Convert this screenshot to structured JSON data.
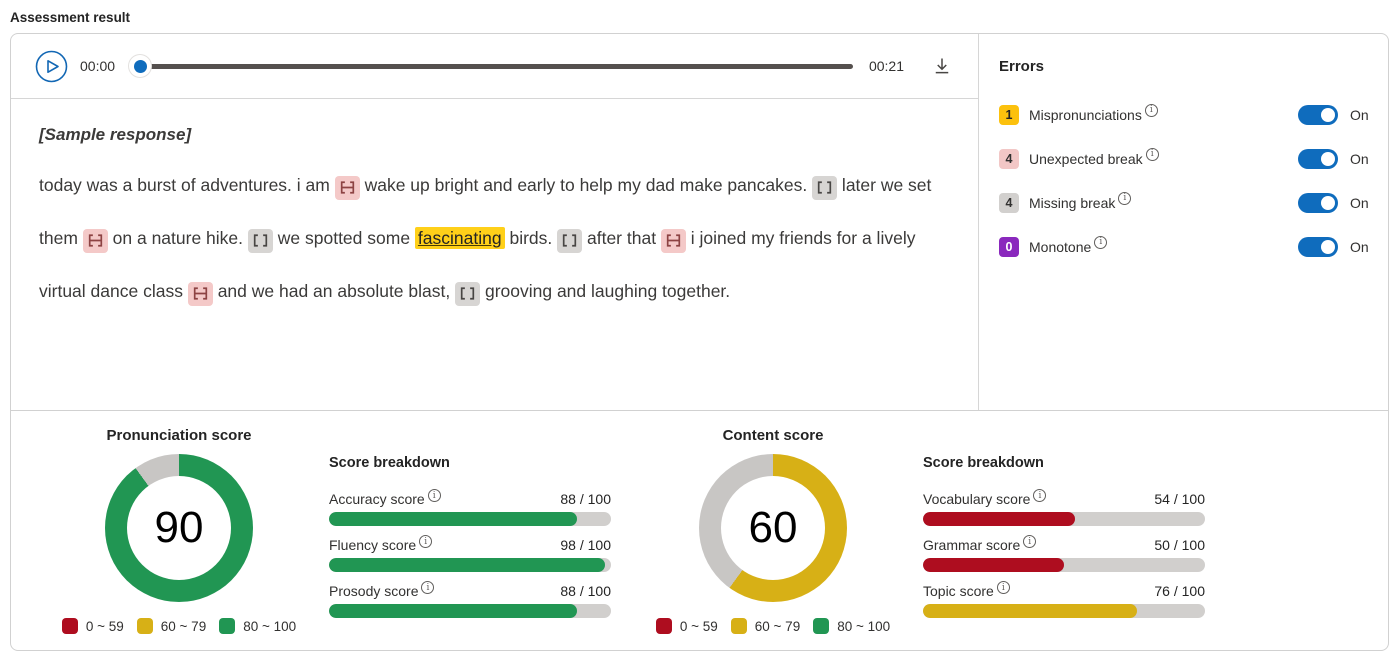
{
  "page_title": "Assessment result",
  "player": {
    "current_time": "00:00",
    "total_time": "00:21"
  },
  "errors_panel": {
    "title": "Errors",
    "items": [
      {
        "count": "1",
        "label": "Mispronunciations",
        "badge_bg": "#fcc10d",
        "badge_fg": "#242424",
        "state": "On"
      },
      {
        "count": "4",
        "label": "Unexpected break",
        "badge_bg": "#f2c7c6",
        "badge_fg": "#323130",
        "state": "On"
      },
      {
        "count": "4",
        "label": "Missing break",
        "badge_bg": "#d2d0ce",
        "badge_fg": "#323130",
        "state": "On"
      },
      {
        "count": "0",
        "label": "Monotone",
        "badge_bg": "#8a28bd",
        "badge_fg": "#ffffff",
        "state": "On"
      }
    ]
  },
  "transcript": {
    "header": "[Sample response]",
    "segments": [
      {
        "type": "text",
        "text": "today was a burst of adventures. i am "
      },
      {
        "type": "unexpected_break"
      },
      {
        "type": "text",
        "text": " wake up bright and early to help my dad make pancakes. "
      },
      {
        "type": "missing_break"
      },
      {
        "type": "text",
        "text": " later we set them "
      },
      {
        "type": "unexpected_break"
      },
      {
        "type": "text",
        "text": " on a nature hike. "
      },
      {
        "type": "missing_break"
      },
      {
        "type": "text",
        "text": " we spotted some "
      },
      {
        "type": "mispronunciation",
        "text": "fascinating"
      },
      {
        "type": "text",
        "text": " birds. "
      },
      {
        "type": "missing_break"
      },
      {
        "type": "text",
        "text": " after that "
      },
      {
        "type": "unexpected_break"
      },
      {
        "type": "text",
        "text": " i joined my friends for a lively virtual dance class "
      },
      {
        "type": "unexpected_break"
      },
      {
        "type": "text",
        "text": " and we had an absolute blast, "
      },
      {
        "type": "missing_break"
      },
      {
        "type": "text",
        "text": " grooving and laughing together."
      }
    ]
  },
  "scores": {
    "pronunciation": {
      "title": "Pronunciation score",
      "value": 90,
      "ring_color": "#219653",
      "remainder_color": "#c8c6c4",
      "breakdown_title": "Score breakdown",
      "breakdown": [
        {
          "label": "Accuracy score",
          "value": 88,
          "max": 100,
          "display": "88 / 100",
          "color": "#219653"
        },
        {
          "label": "Fluency score",
          "value": 98,
          "max": 100,
          "display": "98 / 100",
          "color": "#219653"
        },
        {
          "label": "Prosody score",
          "value": 88,
          "max": 100,
          "display": "88 / 100",
          "color": "#219653"
        }
      ]
    },
    "content": {
      "title": "Content score",
      "value": 60,
      "ring_color": "#d7b016",
      "remainder_color": "#c8c6c4",
      "breakdown_title": "Score breakdown",
      "breakdown": [
        {
          "label": "Vocabulary score",
          "value": 54,
          "max": 100,
          "display": "54 / 100",
          "color": "#ae0d1f"
        },
        {
          "label": "Grammar score",
          "value": 50,
          "max": 100,
          "display": "50 / 100",
          "color": "#ae0d1f"
        },
        {
          "label": "Topic score",
          "value": 76,
          "max": 100,
          "display": "76 / 100",
          "color": "#d7b016"
        }
      ]
    },
    "legend": [
      {
        "label": "0 ~ 59",
        "color": "#ae0d1f"
      },
      {
        "label": "60 ~ 79",
        "color": "#d7b016"
      },
      {
        "label": "80 ~ 100",
        "color": "#219653"
      }
    ]
  },
  "chart_data": [
    {
      "type": "pie",
      "title": "Pronunciation score",
      "labels": [
        "score",
        "remainder"
      ],
      "values": [
        90,
        10
      ],
      "colors": [
        "#219653",
        "#c8c6c4"
      ],
      "center_text": "90",
      "legend": [
        "0 ~ 59",
        "60 ~ 79",
        "80 ~ 100"
      ],
      "legend_position": "bottom"
    },
    {
      "type": "pie",
      "title": "Content score",
      "labels": [
        "score",
        "remainder"
      ],
      "values": [
        60,
        40
      ],
      "colors": [
        "#d7b016",
        "#c8c6c4"
      ],
      "center_text": "60",
      "legend": [
        "0 ~ 59",
        "60 ~ 79",
        "80 ~ 100"
      ],
      "legend_position": "bottom"
    },
    {
      "type": "bar",
      "title": "Score breakdown (Pronunciation)",
      "categories": [
        "Accuracy score",
        "Fluency score",
        "Prosody score"
      ],
      "values": [
        88,
        98,
        88
      ],
      "xlim": [
        0,
        100
      ],
      "data_labels": [
        "88 / 100",
        "98 / 100",
        "88 / 100"
      ]
    },
    {
      "type": "bar",
      "title": "Score breakdown (Content)",
      "categories": [
        "Vocabulary score",
        "Grammar score",
        "Topic score"
      ],
      "values": [
        54,
        50,
        76
      ],
      "xlim": [
        0,
        100
      ],
      "data_labels": [
        "54 / 100",
        "50 / 100",
        "76 / 100"
      ]
    }
  ]
}
